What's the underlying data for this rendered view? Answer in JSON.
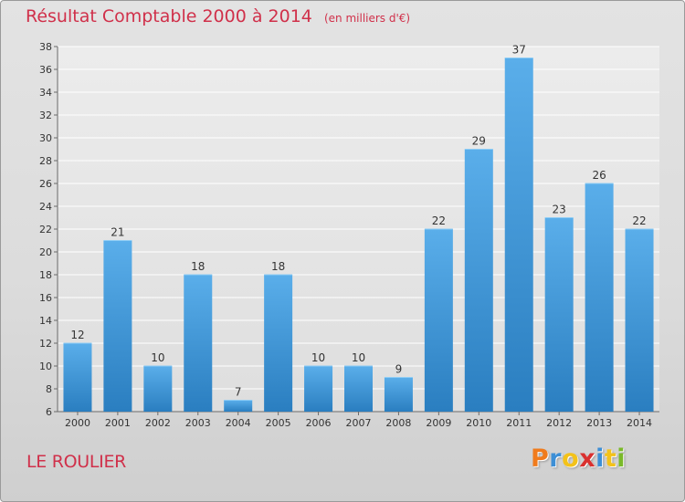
{
  "chart_data": {
    "type": "bar",
    "title": "Résultat Comptable 2000 à 2014",
    "subtitle": "(en milliers d'€)",
    "categories": [
      "2000",
      "2001",
      "2002",
      "2003",
      "2004",
      "2005",
      "2006",
      "2007",
      "2008",
      "2009",
      "2010",
      "2011",
      "2012",
      "2013",
      "2014"
    ],
    "values": [
      12,
      21,
      10,
      18,
      7,
      18,
      10,
      10,
      9,
      22,
      29,
      37,
      23,
      26,
      22
    ],
    "ylim": [
      6,
      38
    ],
    "yticks": [
      6,
      8,
      10,
      12,
      14,
      16,
      18,
      20,
      22,
      24,
      26,
      28,
      30,
      32,
      34,
      36,
      38
    ],
    "xlabel": "",
    "ylabel": "",
    "grid": true,
    "bar_color_light": "#5aaeea",
    "bar_color_dark": "#2a7ec0"
  },
  "commune": "LE ROULIER",
  "logo": {
    "letters": [
      "P",
      "r",
      "o",
      "x",
      "i",
      "t",
      "i"
    ],
    "colors": [
      "#f07b1c",
      "#3d8fd6",
      "#f3c21a",
      "#d9302f",
      "#3d8fd6",
      "#f3c21a",
      "#7ab929"
    ]
  }
}
